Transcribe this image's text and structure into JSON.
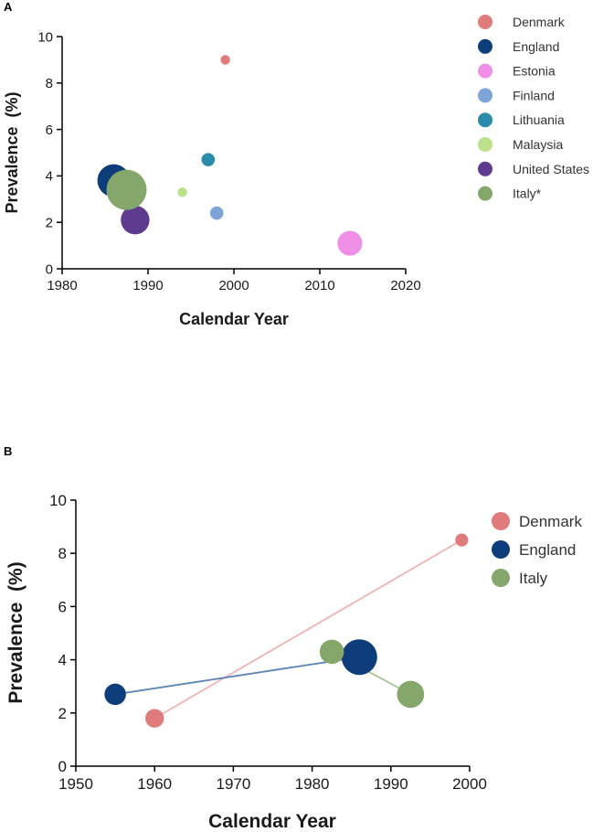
{
  "chart_data": [
    {
      "type": "scatter",
      "panel_label": "A",
      "xlabel": "Calendar Year",
      "ylabel": "Prevalence  (%)",
      "xlim": [
        1980,
        2020
      ],
      "ylim": [
        0,
        10
      ],
      "xticks": [
        1980,
        1990,
        2000,
        2010,
        2020
      ],
      "yticks": [
        0,
        2,
        4,
        6,
        8,
        10
      ],
      "legend_position": "right",
      "series": [
        {
          "name": "Denmark",
          "color": "#e07b7b",
          "points": [
            {
              "x": 1999,
              "y": 9.0,
              "size": 1
            }
          ]
        },
        {
          "name": "England",
          "color": "#0e3d7c",
          "points": [
            {
              "x": 1986,
              "y": 3.8,
              "size": 4
            }
          ]
        },
        {
          "name": "Estonia",
          "color": "#ef8fe6",
          "points": [
            {
              "x": 2013.5,
              "y": 1.1,
              "size": 3
            }
          ]
        },
        {
          "name": "Finland",
          "color": "#7ea3d8",
          "points": [
            {
              "x": 1998,
              "y": 2.4,
              "size": 1.5
            }
          ]
        },
        {
          "name": "Lithuania",
          "color": "#2a8bab",
          "points": [
            {
              "x": 1997,
              "y": 4.7,
              "size": 1.5
            }
          ]
        },
        {
          "name": "Malaysia",
          "color": "#bde08a",
          "points": [
            {
              "x": 1994,
              "y": 3.3,
              "size": 1
            }
          ]
        },
        {
          "name": "United States",
          "color": "#5e3b8f",
          "points": [
            {
              "x": 1988.5,
              "y": 2.1,
              "size": 3.5
            }
          ]
        },
        {
          "name": "Italy*",
          "color": "#86a76b",
          "points": [
            {
              "x": 1987.5,
              "y": 3.4,
              "size": 5
            }
          ]
        }
      ]
    },
    {
      "type": "scatter",
      "panel_label": "B",
      "xlabel": "Calendar Year",
      "ylabel": "Prevalence  (%)",
      "xlim": [
        1950,
        2000
      ],
      "ylim": [
        0,
        10
      ],
      "xticks": [
        1950,
        1960,
        1970,
        1980,
        1990,
        2000
      ],
      "yticks": [
        0,
        2,
        4,
        6,
        8,
        10
      ],
      "legend_position": "right",
      "series": [
        {
          "name": "Denmark",
          "color": "#e07b7b",
          "line_color": "#f2b3b3",
          "points": [
            {
              "x": 1960,
              "y": 1.8,
              "size": 2
            },
            {
              "x": 1999,
              "y": 8.5,
              "size": 1
            }
          ]
        },
        {
          "name": "England",
          "color": "#0e3d7c",
          "line_color": "#5f84b8",
          "points": [
            {
              "x": 1955,
              "y": 2.7,
              "size": 2.5
            },
            {
              "x": 1986,
              "y": 4.1,
              "size": 5
            }
          ]
        },
        {
          "name": "Italy",
          "color": "#86a76b",
          "line_color": "#a8c394",
          "points": [
            {
              "x": 1982.5,
              "y": 4.3,
              "size": 3
            },
            {
              "x": 1992.5,
              "y": 2.7,
              "size": 3.5
            }
          ]
        }
      ]
    }
  ]
}
